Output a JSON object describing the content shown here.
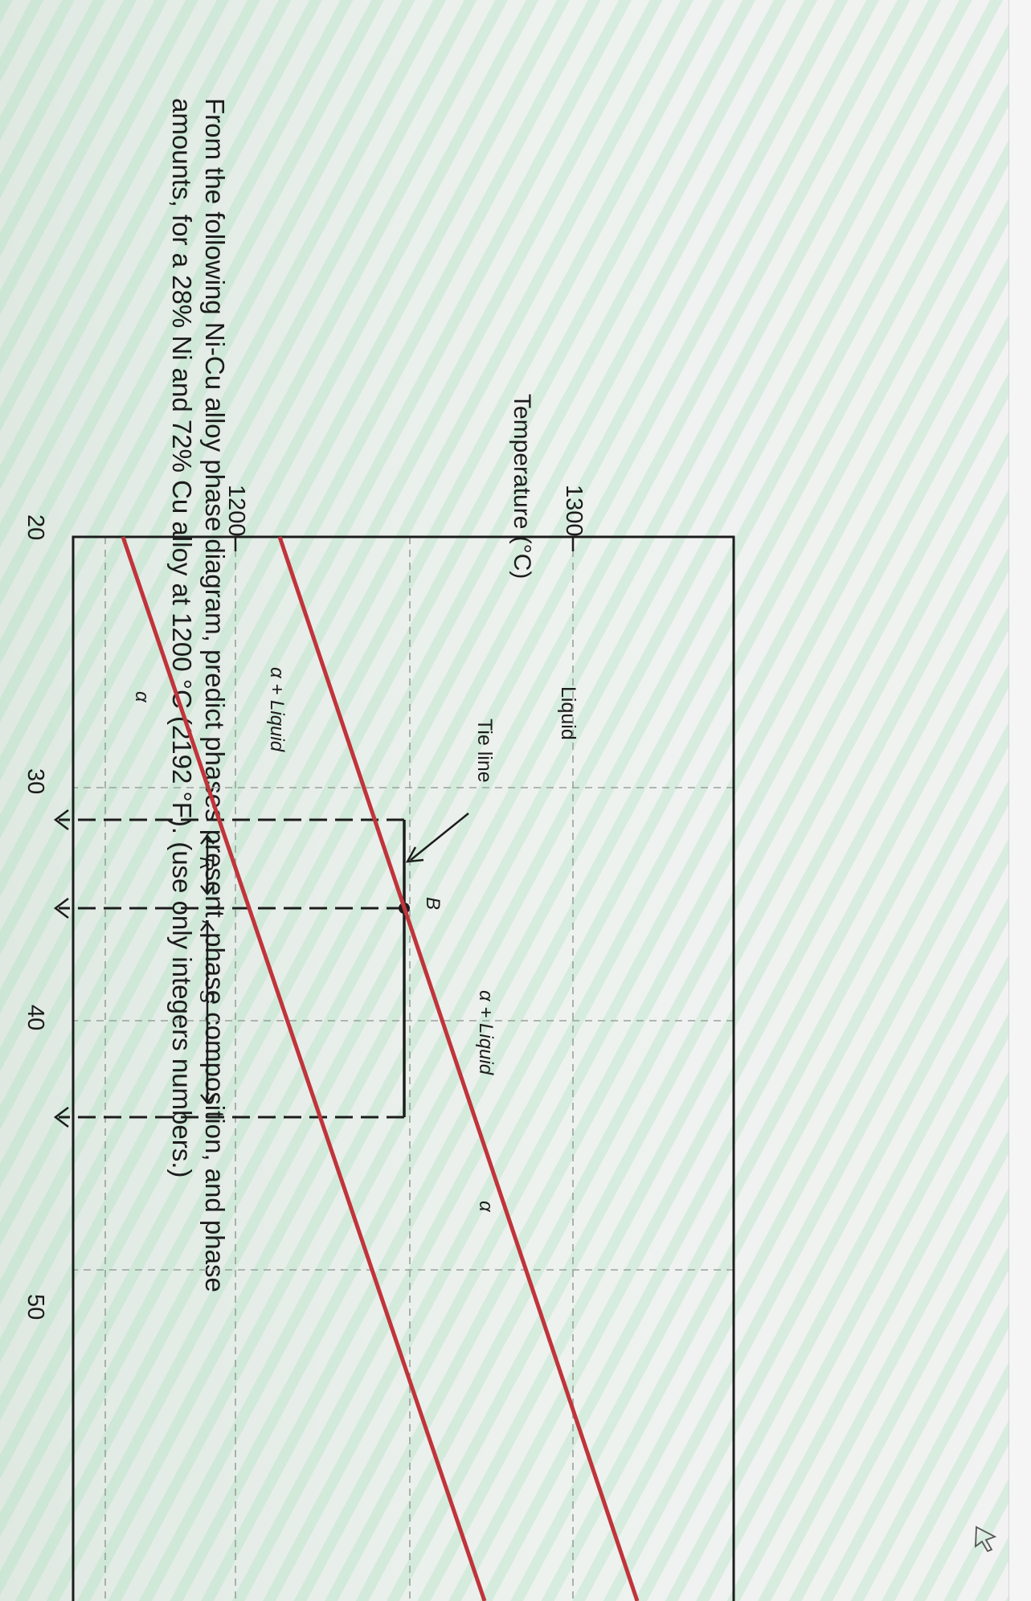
{
  "question": {
    "line1": "From the following Ni-Cu alloy phase diagram, predict phases present, phase composition, and phase",
    "line2": "amounts, for a 28% Ni and 72% Cu alloy at 1200 °C (2192 °F). (use only integers numbers.)"
  },
  "diagram": {
    "y_axis_label": "Temperature (°C)",
    "y_ticks": [
      "1300",
      "1200"
    ],
    "x_ticks": [
      "20",
      "30",
      "40",
      "50"
    ],
    "regions": {
      "liquid": "Liquid",
      "alpha_liquid_left": "α + Liquid",
      "alpha_liquid_right": "α + Liquid",
      "alpha_left": "α",
      "alpha_right": "α"
    },
    "annotations": {
      "tie_line": "Tie line",
      "point_b": "B",
      "segment_r": "R",
      "segment_s": "S"
    },
    "boundary_color": "#c0343b"
  },
  "chart_data": {
    "type": "line",
    "x": [
      20,
      30,
      40,
      50
    ],
    "y_ticks": [
      1200,
      1300
    ],
    "xlim": [
      20,
      50
    ],
    "ylim": [
      1180,
      1320
    ],
    "series": [
      {
        "x": [
          20,
          50
        ],
        "y": [
          1200,
          1300
        ]
      },
      {
        "x": [
          20,
          50
        ],
        "y": [
          1175,
          1275
        ]
      }
    ],
    "tie_line": {
      "temperature": 1250,
      "x_left": 32,
      "x_point_b": 35,
      "x_right": 43
    }
  }
}
